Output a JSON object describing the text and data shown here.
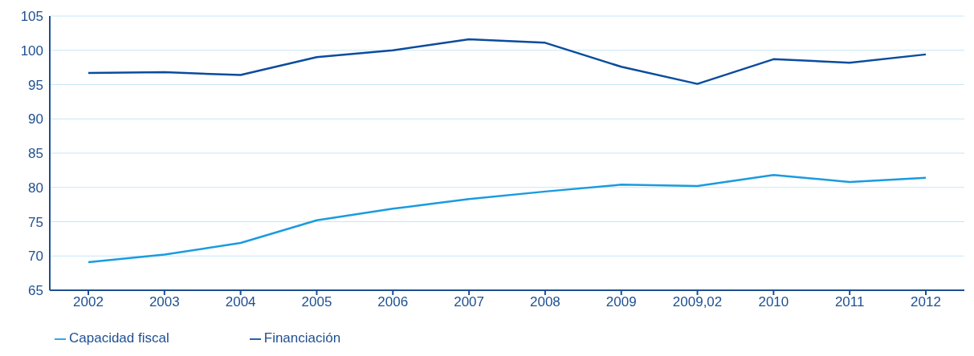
{
  "chart_data": {
    "type": "line",
    "categories": [
      "2002",
      "2003",
      "2004",
      "2005",
      "2006",
      "2007",
      "2008",
      "2009",
      "2009,02",
      "2010",
      "2011",
      "2012"
    ],
    "series": [
      {
        "name": "Capacidad fiscal",
        "color": "#1a9be0",
        "values": [
          69.1,
          70.2,
          71.9,
          75.2,
          76.9,
          78.3,
          79.4,
          80.4,
          80.2,
          81.8,
          80.8,
          81.4
        ]
      },
      {
        "name": "Financiación",
        "color": "#0a4c9e",
        "values": [
          96.7,
          96.8,
          96.4,
          99.0,
          100.0,
          101.6,
          101.1,
          97.6,
          95.1,
          98.7,
          98.2,
          99.4
        ]
      }
    ],
    "ylim": [
      65,
      105
    ],
    "yticks": [
      65,
      70,
      75,
      80,
      85,
      90,
      95,
      100,
      105
    ],
    "grid": "y",
    "legend": "bottom left",
    "marker": "none",
    "line_style": "solid"
  }
}
